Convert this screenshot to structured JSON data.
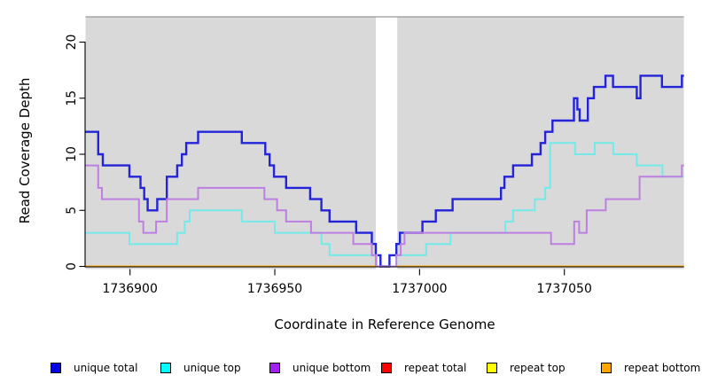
{
  "chart_data": {
    "type": "line",
    "step": true,
    "title": "",
    "xlabel": "Coordinate in Reference Genome",
    "ylabel": "Read Coverage Depth",
    "xlim": [
      1736884.5,
      1737091.3
    ],
    "ylim": [
      0,
      22.4
    ],
    "x_ticks": [
      1736900,
      1736950,
      1737000,
      1737050
    ],
    "x_tick_labels": [
      "1736900",
      "1736950",
      "1737000",
      "1737050"
    ],
    "y_ticks": [
      0,
      5,
      10,
      15,
      20
    ],
    "y_tick_labels": [
      "0",
      "5",
      "10",
      "15",
      "20"
    ],
    "grid": false,
    "plot_background": "#d9d9d9",
    "mask_region": {
      "x_start": 1736984.9,
      "x_end": 1736992.3,
      "color": "#ffffff"
    },
    "series": [
      {
        "name": "repeat total",
        "line_color": "#ff0000",
        "points": [
          [
            1736884.5,
            0
          ]
        ]
      },
      {
        "name": "repeat top",
        "line_color": "#ffff00",
        "points": [
          [
            1736884.5,
            0
          ]
        ]
      },
      {
        "name": "repeat bottom",
        "line_color": "#ffa500",
        "points": [
          [
            1736884.5,
            0
          ]
        ]
      },
      {
        "name": "unique total",
        "line_color": "#2323d9",
        "points": [
          [
            1736884.5,
            12
          ],
          [
            1736889,
            10
          ],
          [
            1736890.6,
            9
          ],
          [
            1736899.8,
            8
          ],
          [
            1736903.6,
            7
          ],
          [
            1736904.9,
            6
          ],
          [
            1736906.1,
            5
          ],
          [
            1736909.4,
            6
          ],
          [
            1736912.7,
            8
          ],
          [
            1736916.3,
            9
          ],
          [
            1736917.9,
            10
          ],
          [
            1736919.4,
            11
          ],
          [
            1736923.5,
            12
          ],
          [
            1736938.6,
            11
          ],
          [
            1736946.7,
            10
          ],
          [
            1736948.2,
            9
          ],
          [
            1736949.7,
            8
          ],
          [
            1736953.9,
            7
          ],
          [
            1736962.2,
            6
          ],
          [
            1736966.1,
            5
          ],
          [
            1736968.9,
            4
          ],
          [
            1736978.1,
            3
          ],
          [
            1736983.5,
            2
          ],
          [
            1736984.9,
            1
          ],
          [
            1736986.5,
            0
          ],
          [
            1736989.6,
            1
          ],
          [
            1736992,
            2
          ],
          [
            1736993.2,
            3
          ],
          [
            1737001,
            4
          ],
          [
            1737005.6,
            5
          ],
          [
            1737011.4,
            6
          ],
          [
            1737028.1,
            7
          ],
          [
            1737029.3,
            8
          ],
          [
            1737032.3,
            9
          ],
          [
            1737038.8,
            10
          ],
          [
            1737041.8,
            11
          ],
          [
            1737043.4,
            12
          ],
          [
            1737045.9,
            13
          ],
          [
            1737053.3,
            15
          ],
          [
            1737054.5,
            14
          ],
          [
            1737055.3,
            13
          ],
          [
            1737058.1,
            15
          ],
          [
            1737060.2,
            16
          ],
          [
            1737064.2,
            17
          ],
          [
            1737066.8,
            16
          ],
          [
            1737075,
            15
          ],
          [
            1737076.3,
            17
          ],
          [
            1737083.7,
            16
          ],
          [
            1737090.6,
            17
          ]
        ]
      },
      {
        "name": "unique top",
        "line_color": "#74e9ea",
        "points": [
          [
            1736884.5,
            3
          ],
          [
            1736899.8,
            2
          ],
          [
            1736916.3,
            3
          ],
          [
            1736918.9,
            4
          ],
          [
            1736920.6,
            5
          ],
          [
            1736938.6,
            4
          ],
          [
            1736950,
            3
          ],
          [
            1736966.1,
            2
          ],
          [
            1736968.9,
            1
          ],
          [
            1736985.2,
            0
          ],
          [
            1736992,
            1
          ],
          [
            1737002.3,
            2
          ],
          [
            1737010.7,
            3
          ],
          [
            1737029.6,
            4
          ],
          [
            1737032.3,
            5
          ],
          [
            1737039.8,
            6
          ],
          [
            1737043.4,
            7
          ],
          [
            1737045.1,
            11
          ],
          [
            1737053.7,
            10
          ],
          [
            1737060.5,
            11
          ],
          [
            1737066.9,
            10
          ],
          [
            1737075,
            9
          ],
          [
            1737083.9,
            8
          ]
        ]
      },
      {
        "name": "unique bottom",
        "line_color": "#bd7fe0",
        "points": [
          [
            1736884.5,
            9
          ],
          [
            1736889,
            7
          ],
          [
            1736890.3,
            6
          ],
          [
            1736903.1,
            4
          ],
          [
            1736904.6,
            3
          ],
          [
            1736909,
            4
          ],
          [
            1736912.7,
            6
          ],
          [
            1736923.5,
            7
          ],
          [
            1736946.4,
            6
          ],
          [
            1736950.8,
            5
          ],
          [
            1736953.9,
            4
          ],
          [
            1736962.5,
            3
          ],
          [
            1736977.1,
            2
          ],
          [
            1736983.5,
            1
          ],
          [
            1736984.9,
            0
          ],
          [
            1736992,
            1
          ],
          [
            1736993.5,
            2
          ],
          [
            1736994.8,
            3
          ],
          [
            1737045.4,
            2
          ],
          [
            1737053.4,
            4
          ],
          [
            1737055.1,
            3
          ],
          [
            1737057.7,
            5
          ],
          [
            1737064.3,
            6
          ],
          [
            1737076,
            8
          ],
          [
            1737090.6,
            9
          ]
        ]
      }
    ],
    "legend_position": "bottom",
    "legend": [
      {
        "label": "unique total",
        "color": "#0000e6"
      },
      {
        "label": "unique top",
        "color": "#00ffff"
      },
      {
        "label": "unique bottom",
        "color": "#a020f0"
      },
      {
        "label": "repeat total",
        "color": "#ff0000"
      },
      {
        "label": "repeat top",
        "color": "#ffff00"
      },
      {
        "label": "repeat bottom",
        "color": "#ffa500"
      }
    ]
  },
  "labels": {
    "x_axis": "Coordinate in Reference Genome",
    "y_axis": "Read Coverage Depth"
  }
}
